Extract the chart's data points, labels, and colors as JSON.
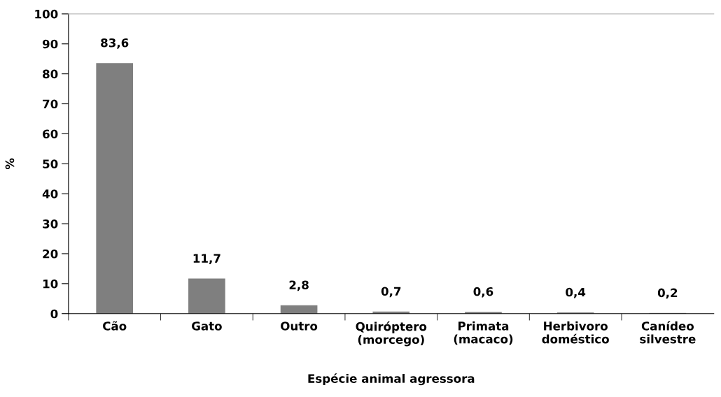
{
  "chart_data": {
    "type": "bar",
    "xlabel": "Espécie animal agressora",
    "ylabel": "%",
    "categories": [
      "Cão",
      "Gato",
      "Outro",
      "Quiróptero\n(morcego)",
      "Primata\n(macaco)",
      "Herbivoro\ndoméstico",
      "Canídeo\nsilvestre"
    ],
    "values": [
      83.6,
      11.7,
      2.8,
      0.7,
      0.6,
      0.4,
      0.2
    ],
    "value_labels": [
      "83,6",
      "11,7",
      "2,8",
      "0,7",
      "0,6",
      "0,4",
      "0,2"
    ],
    "color": "#7f7f7f",
    "ylim": [
      0,
      100
    ],
    "yticks": [
      0,
      10,
      20,
      30,
      40,
      50,
      60,
      70,
      80,
      90,
      100
    ],
    "grid": false,
    "legend": false
  }
}
